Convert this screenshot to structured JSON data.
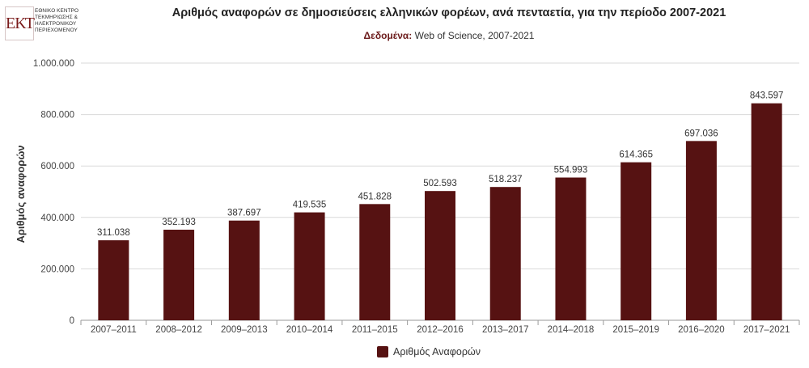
{
  "logo": {
    "mark": "ΕΚΤ",
    "lines": [
      "ΕΘΝΙΚΟ ΚΕΝΤΡΟ",
      "ΤΕΚΜΗΡΙΩΣΗΣ &",
      "ΗΛΕΚΤΡΟΝΙΚΟΥ",
      "ΠΕΡΙΕΧΟΜΕΝΟΥ"
    ]
  },
  "colors": {
    "bar": "#561212",
    "grid": "#d9d9d9",
    "axis": "#9a9a9a"
  },
  "chart_data": {
    "type": "bar",
    "title": "Αριθμός αναφορών σε δημοσιεύσεις ελληνικών φορέων, ανά πενταετία, για την περίοδο 2007-2021",
    "subtitle_label": "Δεδομένα:",
    "subtitle_text": " Web of Science, 2007-2021",
    "xlabel": "",
    "ylabel": "Αριθμός αναφορών",
    "categories": [
      "2007–2011",
      "2008–2012",
      "2009–2013",
      "2010–2014",
      "2011–2015",
      "2012–2016",
      "2013–2017",
      "2014–2018",
      "2015–2019",
      "2016–2020",
      "2017–2021"
    ],
    "series": [
      {
        "name": "Αριθμός Αναφορών",
        "values": [
          311038,
          352193,
          387697,
          419535,
          451828,
          502593,
          518237,
          554993,
          614365,
          697036,
          843597
        ],
        "labels": [
          "311.038",
          "352.193",
          "387.697",
          "419.535",
          "451.828",
          "502.593",
          "518.237",
          "554.993",
          "614.365",
          "697.036",
          "843.597"
        ]
      }
    ],
    "ylim": [
      0,
      1000000
    ],
    "yticks": [
      0,
      200000,
      400000,
      600000,
      800000,
      1000000
    ],
    "ytick_labels": [
      "0",
      "200.000",
      "400.000",
      "600.000",
      "800.000",
      "1.000.000"
    ],
    "grid": true,
    "legend_position": "bottom"
  }
}
